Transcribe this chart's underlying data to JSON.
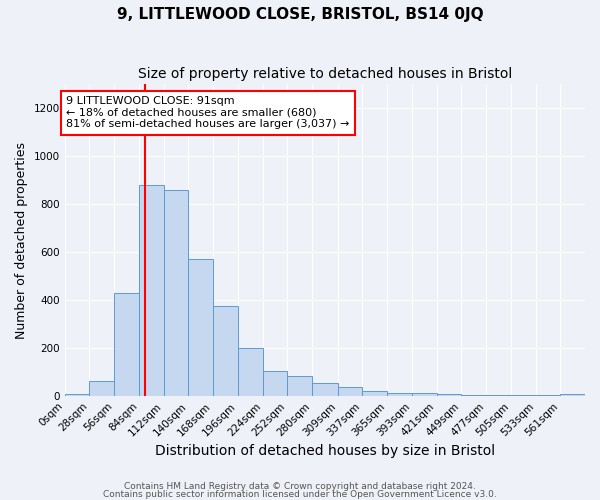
{
  "title1": "9, LITTLEWOOD CLOSE, BRISTOL, BS14 0JQ",
  "title2": "Size of property relative to detached houses in Bristol",
  "xlabel": "Distribution of detached houses by size in Bristol",
  "ylabel": "Number of detached properties",
  "bar_color": "#c5d8f0",
  "bar_edge_color": "#5b9bd5",
  "red_line_x": 91,
  "categories": [
    "0sqm",
    "28sqm",
    "56sqm",
    "84sqm",
    "112sqm",
    "140sqm",
    "168sqm",
    "196sqm",
    "224sqm",
    "252sqm",
    "280sqm",
    "309sqm",
    "337sqm",
    "365sqm",
    "393sqm",
    "421sqm",
    "449sqm",
    "477sqm",
    "505sqm",
    "533sqm",
    "561sqm"
  ],
  "bin_edges": [
    0,
    28,
    56,
    84,
    112,
    140,
    168,
    196,
    224,
    252,
    280,
    309,
    337,
    365,
    393,
    421,
    449,
    477,
    505,
    533,
    561,
    589
  ],
  "values": [
    10,
    65,
    430,
    880,
    860,
    570,
    375,
    200,
    105,
    85,
    55,
    40,
    20,
    15,
    12,
    8,
    5,
    5,
    5,
    5,
    10
  ],
  "ylim": [
    0,
    1300
  ],
  "annotation_line1": "9 LITTLEWOOD CLOSE: 91sqm",
  "annotation_line2": "← 18% of detached houses are smaller (680)",
  "annotation_line3": "81% of semi-detached houses are larger (3,037) →",
  "footnote1": "Contains HM Land Registry data © Crown copyright and database right 2024.",
  "footnote2": "Contains public sector information licensed under the Open Government Licence v3.0.",
  "background_color": "#eef2f8",
  "grid_color": "#ffffff",
  "title1_fontsize": 11,
  "title2_fontsize": 10,
  "xlabel_fontsize": 10,
  "ylabel_fontsize": 9,
  "tick_fontsize": 7.5,
  "annot_fontsize": 8,
  "footnote_fontsize": 6.5
}
